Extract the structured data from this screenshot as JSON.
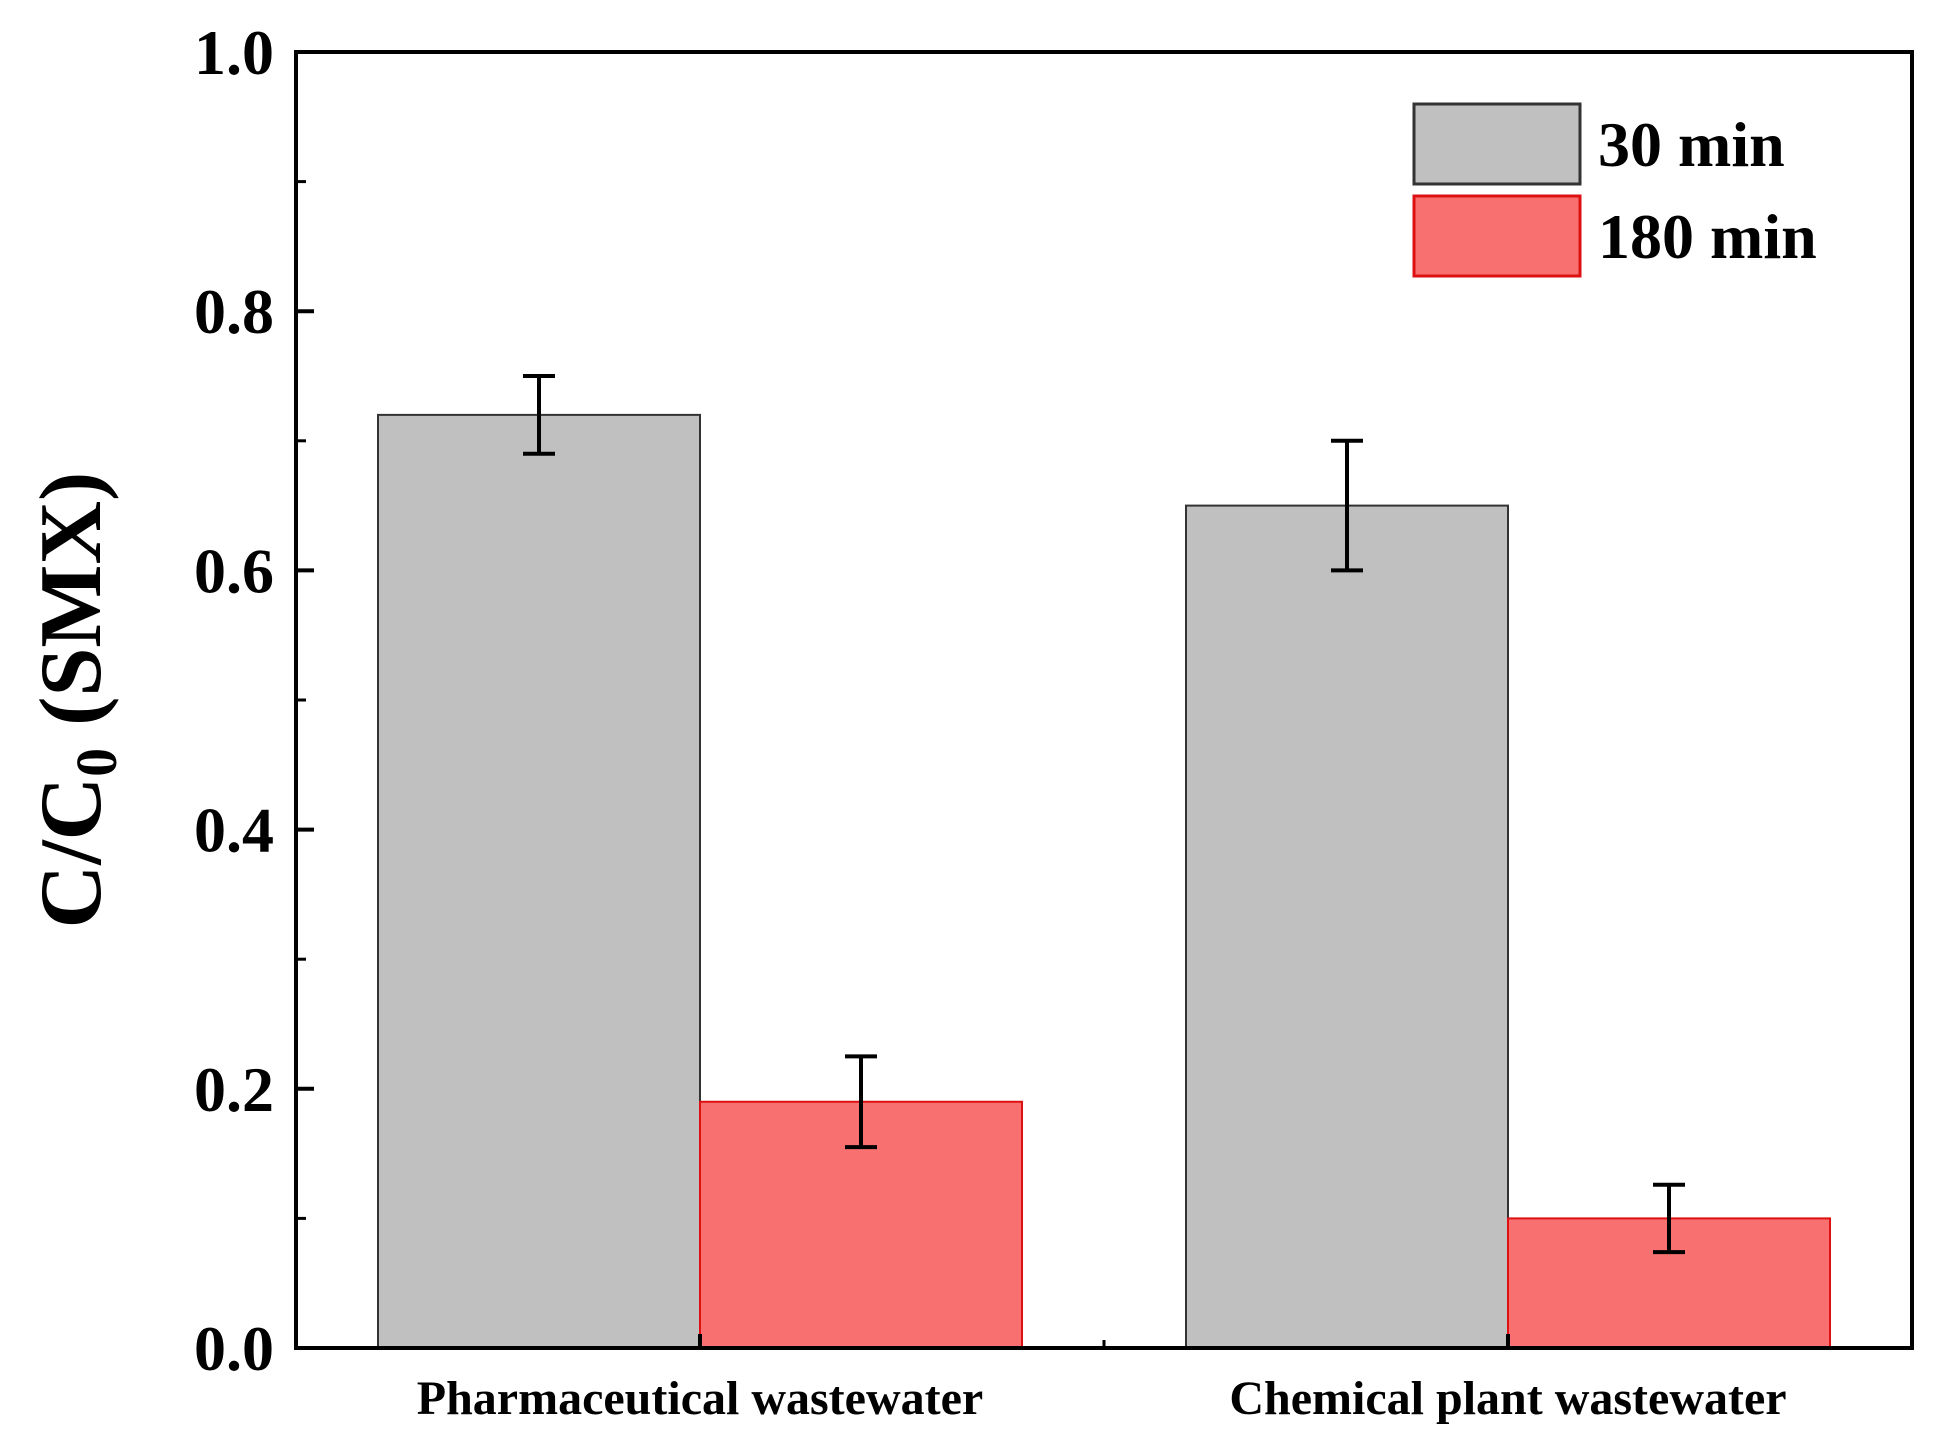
{
  "chart_data": {
    "type": "bar",
    "title": "",
    "xlabel": "",
    "ylabel": "C/C",
    "ylabel_subscript": "0",
    "ylabel_suffix": " (SMX)",
    "ylim": [
      0,
      1.0
    ],
    "yticks": [
      "0.0",
      "0.2",
      "0.4",
      "0.6",
      "0.8",
      "1.0"
    ],
    "categories": [
      "Pharmaceutical wastewater",
      "Chemical plant wastewater"
    ],
    "series": [
      {
        "name": "30 min",
        "color": "#c0c0c0",
        "edge": "#333333",
        "values": [
          0.72,
          0.65
        ],
        "errors": [
          0.03,
          0.05
        ]
      },
      {
        "name": "180 min",
        "color": "#f87070",
        "edge": "#dd1111",
        "values": [
          0.19,
          0.1
        ],
        "errors": [
          0.035,
          0.026
        ]
      }
    ],
    "legend": {
      "position": "top-right"
    },
    "grid": false
  }
}
